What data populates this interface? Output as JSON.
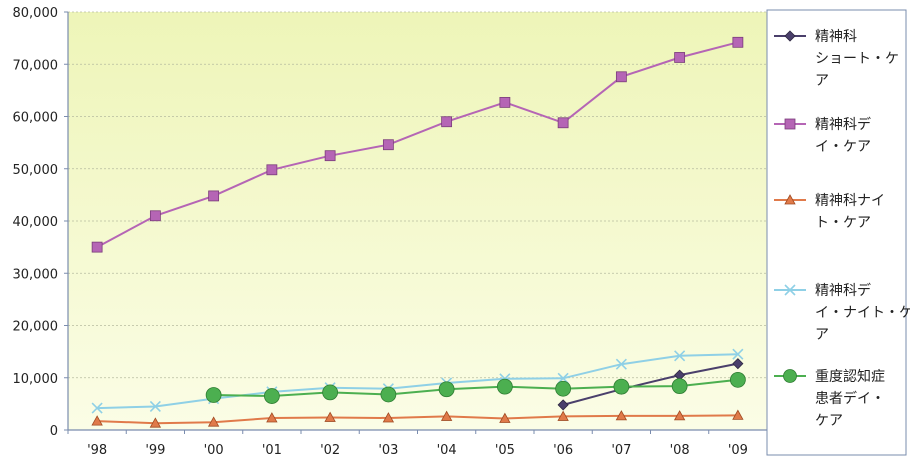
{
  "chart_data": {
    "type": "line",
    "categories": [
      "'98",
      "'99",
      "'00",
      "'01",
      "'02",
      "'03",
      "'04",
      "'05",
      "'06",
      "'07",
      "'08",
      "'09"
    ],
    "ylim": [
      0,
      80000
    ],
    "yticks": [
      "0",
      "10,000",
      "20,000",
      "30,000",
      "40,000",
      "50,000",
      "60,000",
      "70,000",
      "80,000"
    ],
    "grid": true,
    "legend_position": "right",
    "series": [
      {
        "name": "精神科ショート・ケア",
        "legend_lines": [
          "精神科",
          "ショート・ケ",
          "ア"
        ],
        "marker": "diamond",
        "color": "#4a3f6b",
        "values": [
          null,
          null,
          null,
          null,
          null,
          null,
          null,
          null,
          4800,
          7800,
          10500,
          12700
        ]
      },
      {
        "name": "精神科デイ・ケア",
        "legend_lines": [
          "精神科デ",
          "イ・ケア"
        ],
        "marker": "square",
        "color": "#b565b5",
        "values": [
          35000,
          41000,
          44800,
          49800,
          52500,
          54600,
          59000,
          62700,
          58800,
          67600,
          71300,
          74200
        ]
      },
      {
        "name": "精神科ナイト・ケア",
        "legend_lines": [
          "精神科ナイ",
          "ト・ケア"
        ],
        "marker": "triangle",
        "color": "#e07a4a",
        "values": [
          1700,
          1300,
          1500,
          2300,
          2400,
          2300,
          2600,
          2200,
          2600,
          2700,
          2700,
          2800
        ]
      },
      {
        "name": "精神科デイ・ナイト・ケア",
        "legend_lines": [
          "精神科デ",
          "イ・ナイト・ケ",
          "ア"
        ],
        "marker": "x",
        "color": "#8fd0e6",
        "values": [
          4200,
          4500,
          6000,
          7300,
          8100,
          7900,
          9000,
          9800,
          9900,
          12600,
          14200,
          14500
        ]
      },
      {
        "name": "重度認知症患者デイ・ケア",
        "legend_lines": [
          "重度認知症",
          "患者デイ・",
          "ケア"
        ],
        "marker": "circle",
        "color": "#4caf50",
        "values": [
          null,
          null,
          6700,
          6500,
          7200,
          6800,
          7800,
          8300,
          7900,
          8300,
          8400,
          9600
        ]
      }
    ]
  }
}
